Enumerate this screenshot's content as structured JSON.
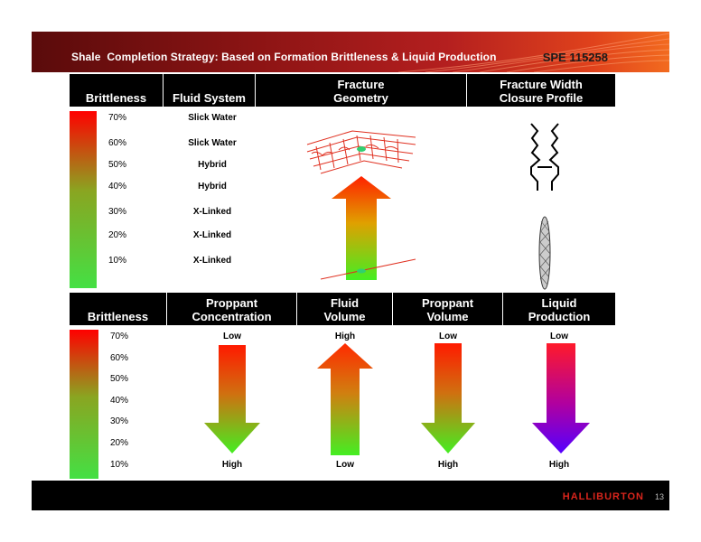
{
  "header": {
    "title": "Shale  Completion Strategy: Based on Formation Brittleness & Liquid Production",
    "ref": "SPE 115258"
  },
  "top_table": {
    "headers": [
      "Brittleness",
      "Fluid System",
      "Fracture\nGeometry",
      "Fracture Width\nClosure Profile"
    ],
    "rows": [
      {
        "pct": "70%",
        "fluid": "Slick Water"
      },
      {
        "pct": "60%",
        "fluid": "Slick Water"
      },
      {
        "pct": "50%",
        "fluid": "Hybrid"
      },
      {
        "pct": "40%",
        "fluid": "Hybrid"
      },
      {
        "pct": "30%",
        "fluid": "X-Linked"
      },
      {
        "pct": "20%",
        "fluid": "X-Linked"
      },
      {
        "pct": "10%",
        "fluid": "X-Linked"
      }
    ]
  },
  "bottom_table": {
    "headers": [
      "Brittleness",
      "Proppant\nConcentration",
      "Fluid\nVolume",
      "Proppant\nVolume",
      "Liquid\nProduction"
    ],
    "pcts": [
      "70%",
      "60%",
      "50%",
      "40%",
      "30%",
      "20%",
      "10%"
    ],
    "columns": [
      {
        "top": "Low",
        "bottom": "High",
        "direction": "down"
      },
      {
        "top": "High",
        "bottom": "Low",
        "direction": "up"
      },
      {
        "top": "Low",
        "bottom": "High",
        "direction": "down"
      },
      {
        "top": "Low",
        "bottom": "High",
        "direction": "down"
      }
    ]
  },
  "footer": {
    "logo": "HALLIBURTON",
    "page": "13"
  },
  "colors": {
    "banner_dark": "#5a0b0b",
    "banner_light": "#f26b1f",
    "arrow_red": "#ff0000",
    "arrow_green": "#44ee22",
    "arrow_purple": "#5500ff"
  }
}
